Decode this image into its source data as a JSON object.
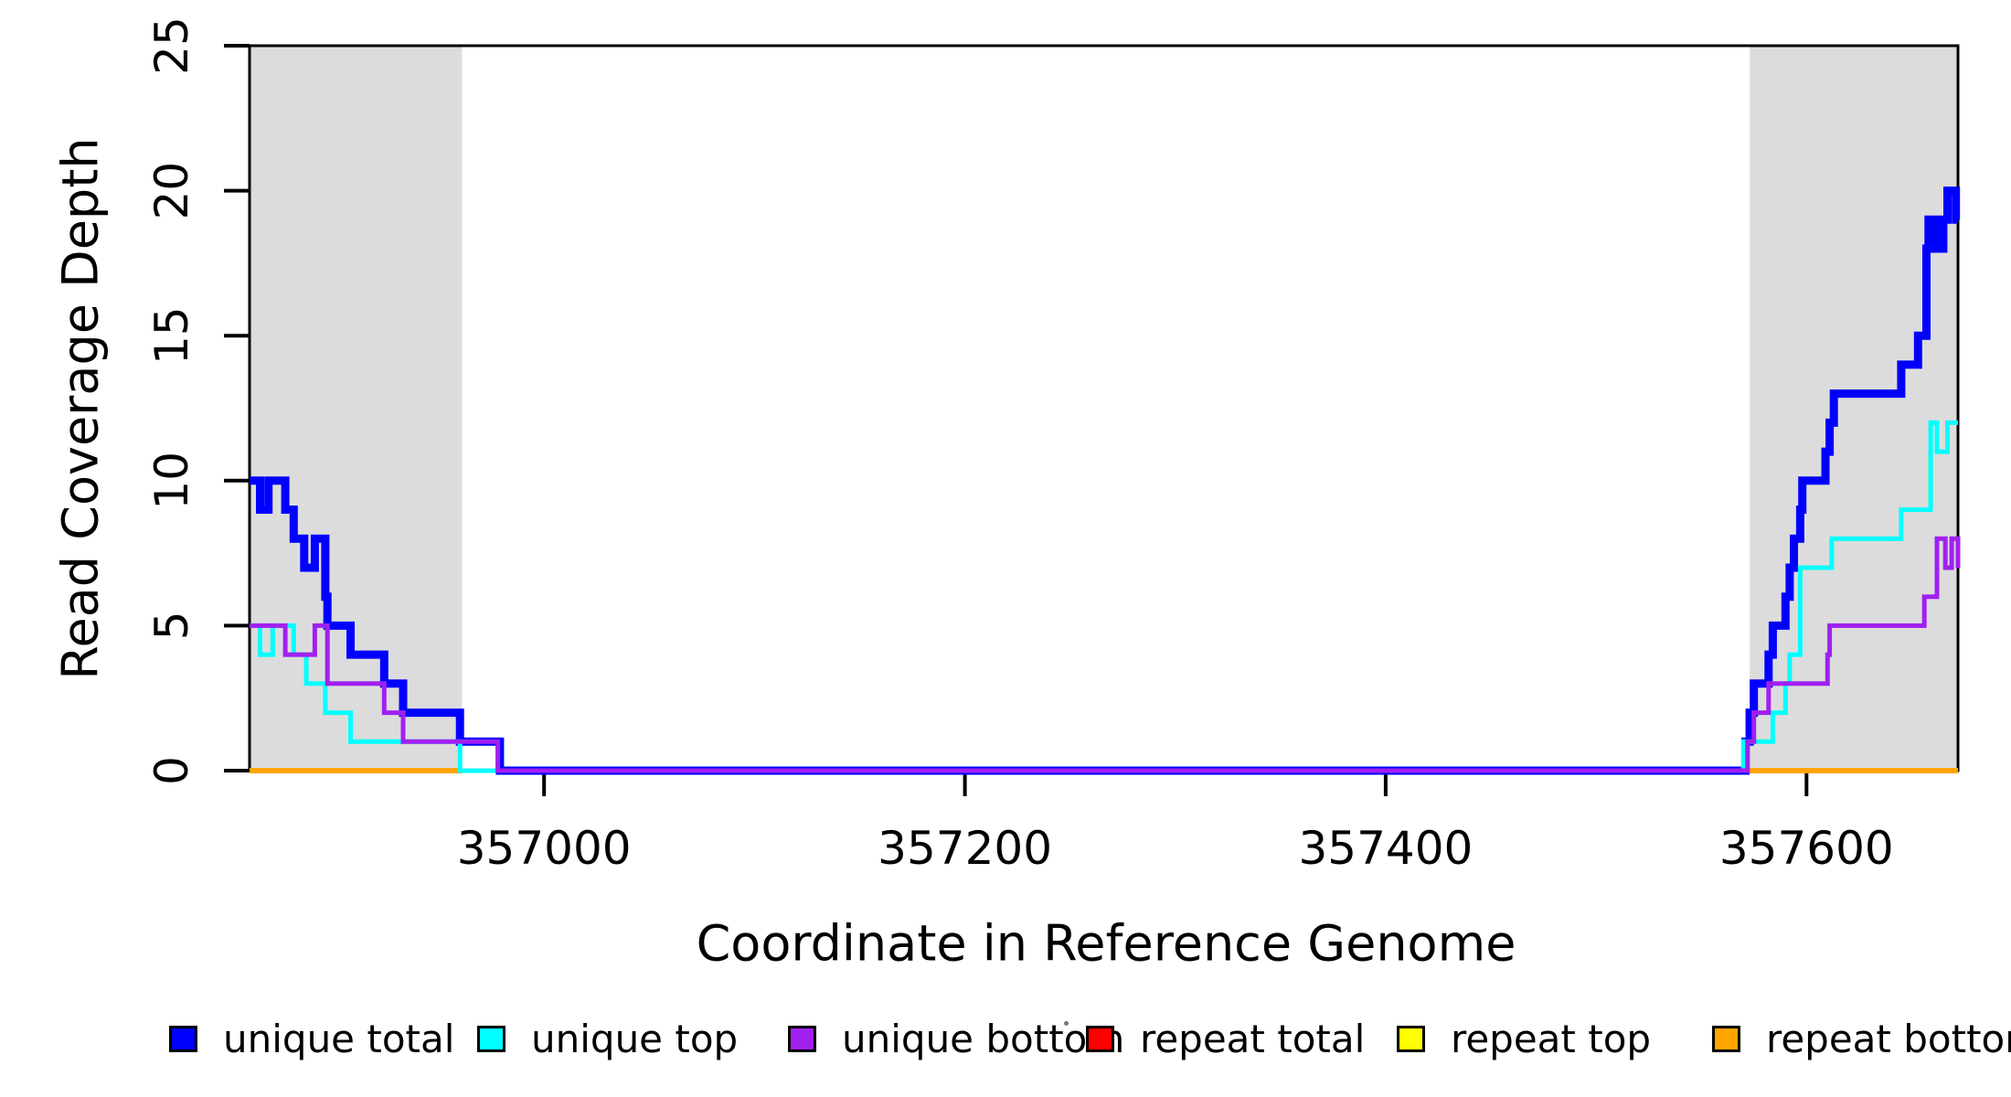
{
  "page": {
    "background": "#ffffff"
  },
  "chart_data": {
    "type": "line",
    "subtype": "step-coverage",
    "title": "",
    "xlabel": "Coordinate in Reference Genome",
    "ylabel": "Read Coverage Depth",
    "xlim": [
      356860,
      357672
    ],
    "ylim": [
      0,
      25
    ],
    "x_ticks": [
      357000,
      357200,
      357400,
      357600
    ],
    "y_ticks": [
      0,
      5,
      10,
      15,
      20,
      25
    ],
    "grid": false,
    "legend_position": "bottom",
    "axis_color": "#000000",
    "shaded_regions": [
      {
        "name": "repeat-region-left",
        "x_start": 356860,
        "x_end": 356961,
        "color": "#DCDCDC"
      },
      {
        "name": "repeat-region-right",
        "x_start": 357573,
        "x_end": 357672,
        "color": "#DCDCDC"
      }
    ],
    "series": [
      {
        "name": "unique total",
        "color": "#0000FF",
        "line_width": 9,
        "segments": [
          [
            [
              356860,
              10
            ],
            [
              356865,
              9
            ],
            [
              356869,
              10
            ],
            [
              356877,
              9
            ],
            [
              356881,
              8
            ],
            [
              356886,
              7
            ],
            [
              356891,
              8
            ],
            [
              356896,
              6
            ],
            [
              356897,
              5
            ],
            [
              356908,
              4
            ],
            [
              356924,
              3
            ],
            [
              356933,
              2
            ],
            [
              356960,
              1
            ],
            [
              356979,
              0
            ],
            [
              357571,
              1
            ],
            [
              357573,
              2
            ],
            [
              357575,
              3
            ],
            [
              357582,
              4
            ],
            [
              357584,
              5
            ],
            [
              357590,
              6
            ],
            [
              357592,
              7
            ],
            [
              357594,
              8
            ],
            [
              357597,
              9
            ],
            [
              357598,
              10
            ],
            [
              357609,
              11
            ],
            [
              357611,
              12
            ],
            [
              357613,
              13
            ],
            [
              357645,
              14
            ],
            [
              357653,
              15
            ],
            [
              357657,
              18
            ],
            [
              357658,
              19
            ],
            [
              357661,
              18
            ],
            [
              357663,
              19
            ],
            [
              357664,
              18
            ],
            [
              357665,
              19
            ],
            [
              357667,
              20
            ],
            [
              357671,
              19
            ],
            [
              357672,
              19
            ]
          ]
        ]
      },
      {
        "name": "unique top",
        "color": "#00FFFF",
        "line_width": 5,
        "segments": [
          [
            [
              356860,
              5
            ],
            [
              356865,
              4
            ],
            [
              356871,
              5
            ],
            [
              356881,
              4
            ],
            [
              356887,
              3
            ],
            [
              356896,
              2
            ],
            [
              356908,
              1
            ],
            [
              356960,
              0
            ],
            [
              357570,
              1
            ],
            [
              357584,
              2
            ],
            [
              357590,
              3
            ],
            [
              357592,
              4
            ],
            [
              357597,
              7
            ],
            [
              357612,
              8
            ],
            [
              357645,
              9
            ],
            [
              357659,
              12
            ],
            [
              357662,
              11
            ],
            [
              357667,
              12
            ],
            [
              357672,
              12
            ]
          ]
        ]
      },
      {
        "name": "unique bottom",
        "color": "#A020F0",
        "line_width": 5,
        "segments": [
          [
            [
              356860,
              5
            ],
            [
              356877,
              4
            ],
            [
              356891,
              5
            ],
            [
              356897,
              3
            ],
            [
              356924,
              2
            ],
            [
              356933,
              1
            ],
            [
              356978,
              0
            ],
            [
              357572,
              1
            ],
            [
              357575,
              2
            ],
            [
              357582,
              3
            ],
            [
              357610,
              4
            ],
            [
              357611,
              5
            ],
            [
              357656,
              6
            ],
            [
              357662,
              8
            ],
            [
              357666,
              7
            ],
            [
              357669,
              8
            ],
            [
              357672,
              7
            ]
          ]
        ]
      },
      {
        "name": "repeat total",
        "color": "#FF0000",
        "line_width": 6,
        "segments": [
          [
            [
              356860,
              0
            ],
            [
              356961,
              0
            ]
          ],
          [
            [
              357573,
              0
            ],
            [
              357672,
              0
            ]
          ]
        ]
      },
      {
        "name": "repeat top",
        "color": "#FFFF00",
        "line_width": 6,
        "segments": [
          [
            [
              356860,
              0
            ],
            [
              356961,
              0
            ]
          ],
          [
            [
              357573,
              0
            ],
            [
              357672,
              0
            ]
          ]
        ]
      },
      {
        "name": "repeat bottom",
        "color": "#FFA500",
        "line_width": 6,
        "segments": [
          [
            [
              356860,
              0
            ],
            [
              356961,
              0
            ]
          ],
          [
            [
              357573,
              0
            ],
            [
              357672,
              0
            ]
          ]
        ]
      }
    ],
    "draw_order": [
      "repeat total",
      "repeat top",
      "repeat bottom",
      "unique total",
      "unique top",
      "unique bottom"
    ]
  },
  "legend": {
    "items": [
      {
        "label": "unique total",
        "color": "#0000FF"
      },
      {
        "label": "unique top",
        "color": "#00FFFF"
      },
      {
        "label": "unique bottom",
        "color": "#A020F0"
      },
      {
        "label": "repeat total",
        "color": "#FF0000"
      },
      {
        "label": "repeat top",
        "color": "#FFFF00"
      },
      {
        "label": "repeat bottom",
        "color": "#FFA500"
      }
    ]
  }
}
